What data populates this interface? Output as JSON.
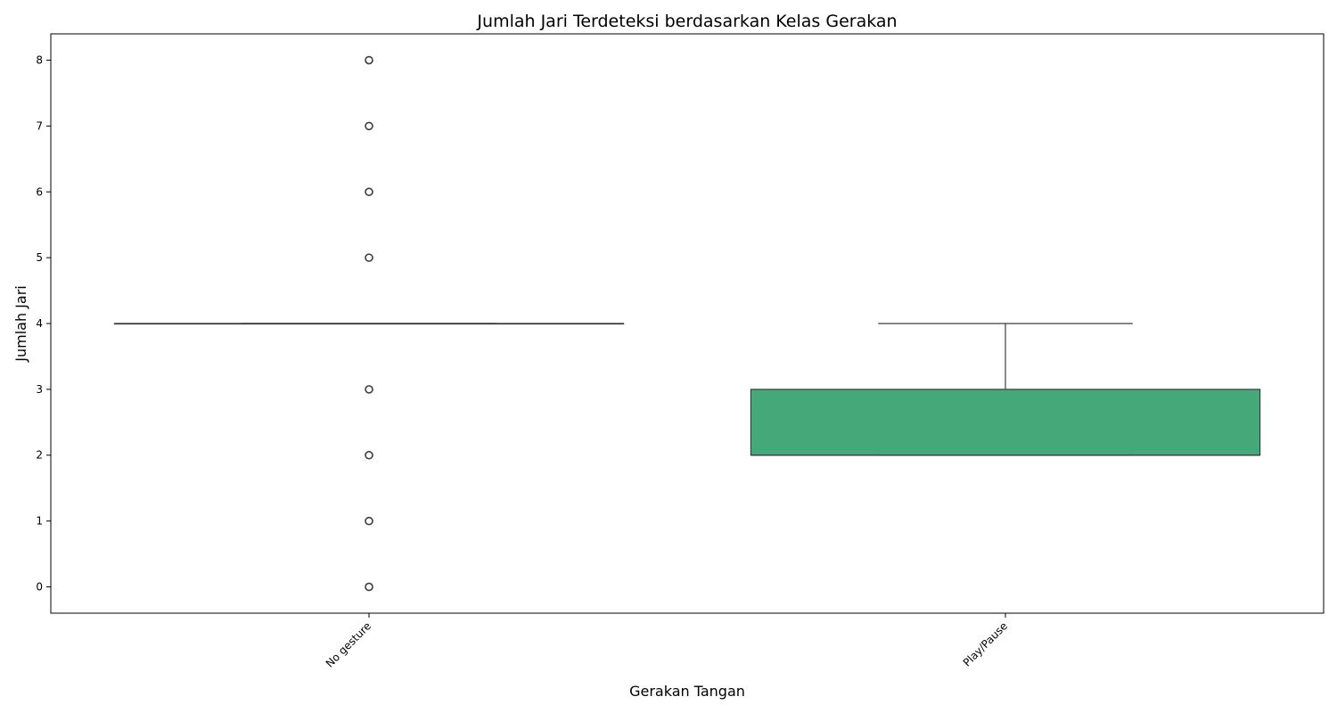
{
  "chart_data": {
    "type": "box",
    "title": "Jumlah Jari Terdeteksi berdasarkan Kelas Gerakan",
    "xlabel": "Gerakan Tangan",
    "ylabel": "Jumlah Jari",
    "ylim": [
      -0.4,
      8.4
    ],
    "yticks": [
      0,
      1,
      2,
      3,
      4,
      5,
      6,
      7,
      8
    ],
    "categories": [
      "No gesture",
      "Play/Pause"
    ],
    "boxes": [
      {
        "category": "No gesture",
        "q1": 4,
        "median": 4,
        "q3": 4,
        "whisker_low": 4,
        "whisker_high": 4,
        "outliers": [
          8,
          7,
          6,
          5,
          3,
          2,
          1,
          0
        ],
        "color": "#ffffff"
      },
      {
        "category": "Play/Pause",
        "q1": 2,
        "median": 2,
        "q3": 3,
        "whisker_low": 2,
        "whisker_high": 4,
        "outliers": [],
        "color": "#44a878"
      }
    ],
    "grid": false,
    "legend": "none"
  }
}
